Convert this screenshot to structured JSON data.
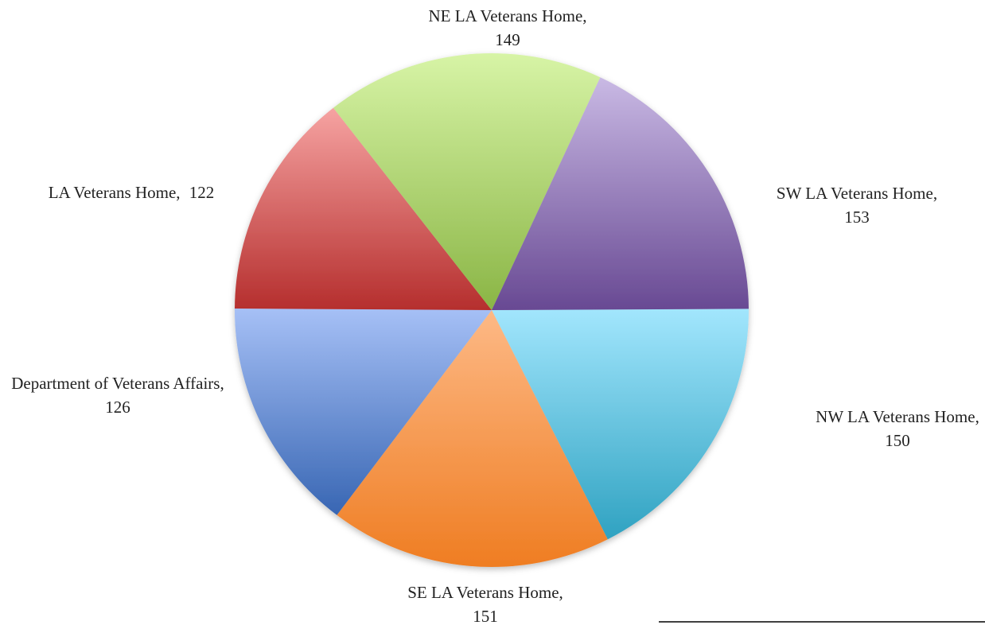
{
  "chart_data": {
    "type": "pie",
    "categories": [
      "NW LA Veterans Home,",
      "SE LA Veterans Home,",
      "Department of Veterans Affairs,",
      "LA Veterans Home,",
      "NE LA Veterans Home,",
      "SW LA Veterans Home,"
    ],
    "values": [
      150,
      151,
      126,
      122,
      149,
      153
    ],
    "colors": [
      [
        "#a2e6fd",
        "#2fa2c1"
      ],
      [
        "#fdb986",
        "#ef7d22"
      ],
      [
        "#a6c0f6",
        "#3866b3"
      ],
      [
        "#f6a3a2",
        "#b52e2d"
      ],
      [
        "#d7f4a6",
        "#8ab545"
      ],
      [
        "#c9b9e4",
        "#684993"
      ]
    ]
  }
}
